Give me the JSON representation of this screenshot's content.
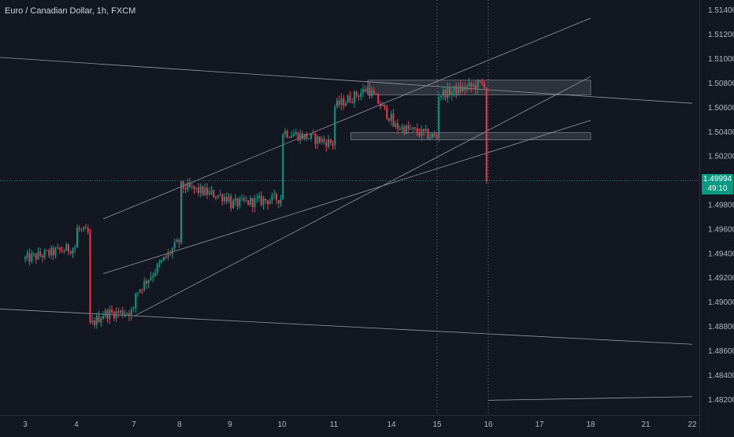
{
  "chart_data": {
    "type": "candlestick",
    "title": "Euro / Canadian Dollar, 1h, FXCM",
    "symbol": "Euro / Canadian Dollar",
    "timeframe": "1h",
    "source": "FXCM",
    "x_labels": [
      "3",
      "4",
      "7",
      "8",
      "9",
      "10",
      "11",
      "14",
      "15",
      "16",
      "17",
      "18",
      "21",
      "22"
    ],
    "y_ticks": [
      "1.51400",
      "1.51200",
      "1.51000",
      "1.50800",
      "1.50600",
      "1.50400",
      "1.50200",
      "1.49800",
      "1.49600",
      "1.49400",
      "1.49200",
      "1.49000",
      "1.48800",
      "1.48600",
      "1.48400",
      "1.48200"
    ],
    "ylim": [
      1.4816,
      1.5144
    ],
    "last_price": "1.49994",
    "countdown": "49:10",
    "grid": false,
    "colors": {
      "background": "#131722",
      "up": "#089981",
      "down": "#f23645",
      "axis_text": "#b2b5be",
      "line": "#9598a1",
      "last_price": "#089981"
    },
    "price_path": [
      {
        "date": "2025-03-03",
        "price": 1.4935
      },
      {
        "date": "2025-03-03",
        "price": 1.49
      },
      {
        "date": "2025-03-03",
        "price": 1.4935
      },
      {
        "date": "2025-03-04",
        "price": 1.4945
      },
      {
        "date": "2025-03-04",
        "price": 1.495
      },
      {
        "date": "2025-03-04",
        "price": 1.496
      },
      {
        "date": "2025-03-05",
        "price": 1.4955
      },
      {
        "date": "2025-03-05",
        "price": 1.488
      },
      {
        "date": "2025-03-06",
        "price": 1.489
      },
      {
        "date": "2025-03-07",
        "price": 1.4892
      },
      {
        "date": "2025-03-07",
        "price": 1.4905
      },
      {
        "date": "2025-03-08",
        "price": 1.495
      },
      {
        "date": "2025-03-08",
        "price": 1.4995
      },
      {
        "date": "2025-03-09",
        "price": 1.4985
      },
      {
        "date": "2025-03-09",
        "price": 1.498
      },
      {
        "date": "2025-03-10",
        "price": 1.4985
      },
      {
        "date": "2025-03-10",
        "price": 1.5
      },
      {
        "date": "2025-03-10",
        "price": 1.504
      },
      {
        "date": "2025-03-11",
        "price": 1.503
      },
      {
        "date": "2025-03-11",
        "price": 1.506
      },
      {
        "date": "2025-03-13",
        "price": 1.5075
      },
      {
        "date": "2025-03-14",
        "price": 1.505
      },
      {
        "date": "2025-03-14",
        "price": 1.5075
      },
      {
        "date": "2025-03-14",
        "price": 1.5045
      },
      {
        "date": "2025-03-15",
        "price": 1.5035
      },
      {
        "date": "2025-03-15",
        "price": 1.504
      },
      {
        "date": "2025-03-15",
        "price": 1.507
      },
      {
        "date": "2025-03-16",
        "price": 1.508
      },
      {
        "date": "2025-03-16",
        "price": 1.5045
      },
      {
        "date": "2025-03-16",
        "price": 1.5025
      },
      {
        "date": "2025-03-16",
        "price": 1.4988
      },
      {
        "date": "2025-03-16",
        "price": 1.4999
      }
    ],
    "zones": [
      {
        "from_date": "2025-03-13",
        "to_date": "2025-03-18",
        "low": 1.507,
        "high": 1.5082
      },
      {
        "from_date": "2025-03-12",
        "to_date": "2025-03-18",
        "low": 1.5033,
        "high": 1.5039
      }
    ],
    "trendlines": [
      {
        "start": {
          "date": "2025-03-02",
          "price": 1.5102
        },
        "end": {
          "date": "2025-03-22",
          "price": 1.5063
        }
      },
      {
        "start": {
          "date": "2025-03-02",
          "price": 1.4895
        },
        "end": {
          "date": "2025-03-22",
          "price": 1.4865
        }
      },
      {
        "start": {
          "date": "2025-03-06",
          "price": 1.4968
        },
        "end": {
          "date": "2025-03-18",
          "price": 1.5133
        }
      },
      {
        "start": {
          "date": "2025-03-07",
          "price": 1.4888
        },
        "end": {
          "date": "2025-03-18",
          "price": 1.5085
        }
      },
      {
        "start": {
          "date": "2025-03-06",
          "price": 1.4923
        },
        "end": {
          "date": "2025-03-18",
          "price": 1.5049
        }
      },
      {
        "start": {
          "date": "2025-03-16",
          "price": 1.4819
        },
        "end": {
          "date": "2025-03-22",
          "price": 1.4822
        }
      }
    ],
    "vlines": [
      {
        "date": "2025-03-15"
      },
      {
        "date": "2025-03-16"
      }
    ]
  }
}
